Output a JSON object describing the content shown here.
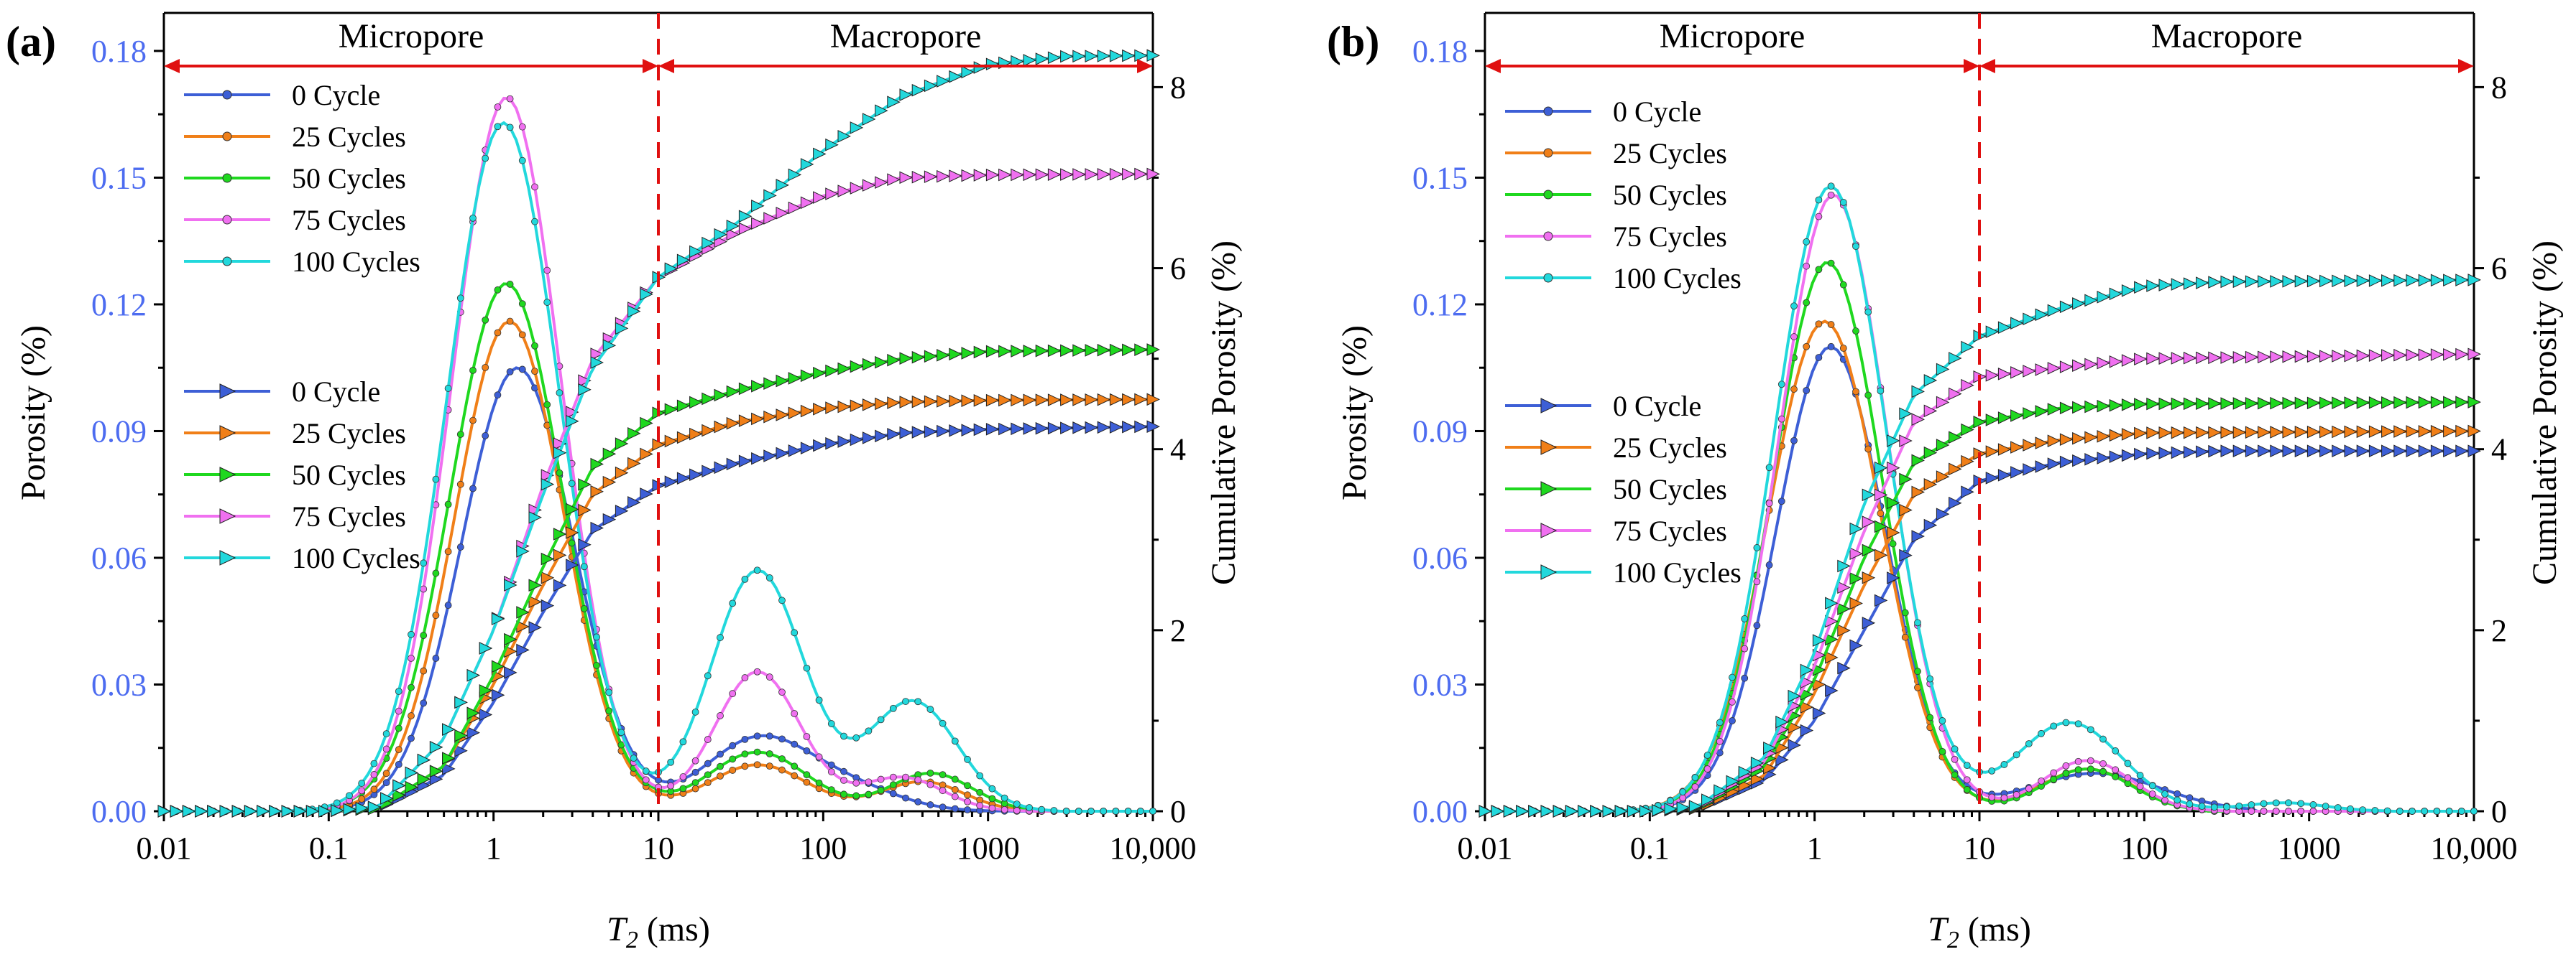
{
  "figure": {
    "panels": [
      {
        "id": "a",
        "label": "(a)",
        "region_left": "Micropore",
        "region_right": "Macropore",
        "divider_t2": 10,
        "xlabel_main": "T",
        "xlabel_sub": "2",
        "xlabel_unit": " (ms)",
        "ylabel_left": "Porosity (%)",
        "ylabel_right": "Cumulative Porosity (%)",
        "x_ticks": [
          "0.01",
          "0.1",
          "1",
          "10",
          "100",
          "1000",
          "10,000"
        ],
        "y_left_ticks": [
          "0.00",
          "0.03",
          "0.06",
          "0.09",
          "0.12",
          "0.15",
          "0.18"
        ],
        "y_right_ticks": [
          "0",
          "2",
          "4",
          "6",
          "8"
        ],
        "legend_porosity": [
          "0 Cycle",
          "25 Cycles",
          "50 Cycles",
          "75 Cycles",
          "100 Cycles"
        ],
        "legend_cumulative": [
          "0 Cycle",
          "25 Cycles",
          "50 Cycles",
          "75 Cycles",
          "100 Cycles"
        ]
      },
      {
        "id": "b",
        "label": "(b)",
        "region_left": "Micropore",
        "region_right": "Macropore",
        "divider_t2": 10,
        "xlabel_main": "T",
        "xlabel_sub": "2",
        "xlabel_unit": " (ms)",
        "ylabel_left": "Porosity (%)",
        "ylabel_right": "Cumulative Porosity (%)",
        "x_ticks": [
          "0.01",
          "0.1",
          "1",
          "10",
          "100",
          "1000",
          "10,000"
        ],
        "y_left_ticks": [
          "0.00",
          "0.03",
          "0.06",
          "0.09",
          "0.12",
          "0.15",
          "0.18"
        ],
        "y_right_ticks": [
          "0",
          "2",
          "4",
          "6",
          "8"
        ],
        "legend_porosity": [
          "0 Cycle",
          "25 Cycles",
          "50 Cycles",
          "75 Cycles",
          "100 Cycles"
        ],
        "legend_cumulative": [
          "0 Cycle",
          "25 Cycles",
          "50 Cycles",
          "75 Cycles",
          "100 Cycles"
        ]
      }
    ],
    "colors": {
      "0 Cycle": "#3d5fd6",
      "25 Cycles": "#f07f18",
      "50 Cycles": "#1fd81f",
      "75 Cycles": "#f070f0",
      "100 Cycles": "#22d8dc",
      "divider": "#e01010",
      "left_axis_text": "#4d6cf0"
    }
  },
  "chart_data": [
    {
      "type": "line",
      "panel": "a",
      "title": "",
      "xlabel": "T2 (ms)",
      "ylabel": "Porosity (%)",
      "y2label": "Cumulative Porosity (%)",
      "xscale": "log",
      "xlim": [
        0.01,
        10000
      ],
      "ylim": [
        0,
        0.189
      ],
      "y2lim": [
        0,
        8.82
      ],
      "legend_position": "left",
      "series": [
        {
          "name": "0 Cycle",
          "axis": "left",
          "marker": "circle",
          "peaks": [
            [
              1.4,
              0.105,
              0.34
            ],
            [
              40,
              0.017,
              0.32
            ],
            [
              150,
              0.005,
              0.3
            ]
          ],
          "baseline_min_t2": 0.12,
          "baseline_max_t2": 1100
        },
        {
          "name": "25 Cycles",
          "axis": "left",
          "marker": "circle",
          "peaks": [
            [
              1.25,
              0.116,
              0.33
            ],
            [
              40,
              0.011,
              0.3
            ],
            [
              400,
              0.007,
              0.25
            ]
          ],
          "baseline_min_t2": 0.1,
          "baseline_max_t2": 1200
        },
        {
          "name": "50 Cycles",
          "axis": "left",
          "marker": "circle",
          "peaks": [
            [
              1.2,
              0.125,
              0.34
            ],
            [
              40,
              0.014,
              0.3
            ],
            [
              450,
              0.009,
              0.25
            ]
          ],
          "baseline_min_t2": 0.1,
          "baseline_max_t2": 1500
        },
        {
          "name": "75 Cycles",
          "axis": "left",
          "marker": "circle",
          "peaks": [
            [
              1.2,
              0.169,
              0.33
            ],
            [
              40,
              0.033,
              0.26
            ],
            [
              300,
              0.008,
              0.25
            ]
          ],
          "baseline_min_t2": 0.09,
          "baseline_max_t2": 1500
        },
        {
          "name": "100 Cycles",
          "axis": "left",
          "marker": "circle",
          "peaks": [
            [
              1.15,
              0.163,
              0.34
            ],
            [
              40,
              0.057,
              0.28
            ],
            [
              350,
              0.026,
              0.27
            ]
          ],
          "baseline_min_t2": 0.09,
          "baseline_max_t2": 1700
        },
        {
          "name": "0 Cycle",
          "axis": "right",
          "marker": "triangle",
          "points": [
            [
              0.1,
              0
            ],
            [
              0.2,
              0.03
            ],
            [
              0.5,
              0.4
            ],
            [
              1,
              1.2
            ],
            [
              2,
              2.2
            ],
            [
              4,
              3.1
            ],
            [
              10,
              3.6
            ],
            [
              30,
              3.85
            ],
            [
              100,
              4.05
            ],
            [
              300,
              4.18
            ],
            [
              1000,
              4.22
            ],
            [
              10000,
              4.25
            ]
          ]
        },
        {
          "name": "25 Cycles",
          "axis": "right",
          "marker": "triangle",
          "points": [
            [
              0.1,
              0
            ],
            [
              0.2,
              0.03
            ],
            [
              0.5,
              0.5
            ],
            [
              1,
              1.4
            ],
            [
              2,
              2.5
            ],
            [
              4,
              3.5
            ],
            [
              10,
              4.05
            ],
            [
              30,
              4.3
            ],
            [
              100,
              4.45
            ],
            [
              300,
              4.52
            ],
            [
              1000,
              4.54
            ],
            [
              10000,
              4.55
            ]
          ]
        },
        {
          "name": "50 Cycles",
          "axis": "right",
          "marker": "triangle",
          "points": [
            [
              0.1,
              0
            ],
            [
              0.2,
              0.03
            ],
            [
              0.5,
              0.5
            ],
            [
              1,
              1.5
            ],
            [
              2,
              2.7
            ],
            [
              4,
              3.8
            ],
            [
              10,
              4.4
            ],
            [
              30,
              4.65
            ],
            [
              100,
              4.85
            ],
            [
              300,
              5.0
            ],
            [
              1000,
              5.08
            ],
            [
              10000,
              5.1
            ]
          ]
        },
        {
          "name": "75 Cycles",
          "axis": "right",
          "marker": "triangle",
          "points": [
            [
              0.1,
              0
            ],
            [
              0.2,
              0.05
            ],
            [
              0.5,
              0.8
            ],
            [
              1,
              2.0
            ],
            [
              2,
              3.6
            ],
            [
              4,
              5.0
            ],
            [
              10,
              5.9
            ],
            [
              30,
              6.4
            ],
            [
              100,
              6.8
            ],
            [
              300,
              7.0
            ],
            [
              1000,
              7.03
            ],
            [
              10000,
              7.04
            ]
          ]
        },
        {
          "name": "100 Cycles",
          "axis": "right",
          "marker": "triangle",
          "points": [
            [
              0.1,
              0
            ],
            [
              0.2,
              0.05
            ],
            [
              0.5,
              0.8
            ],
            [
              1,
              2.0
            ],
            [
              2,
              3.5
            ],
            [
              4,
              4.9
            ],
            [
              10,
              5.9
            ],
            [
              30,
              6.5
            ],
            [
              100,
              7.3
            ],
            [
              300,
              7.9
            ],
            [
              1000,
              8.25
            ],
            [
              3000,
              8.34
            ],
            [
              10000,
              8.35
            ]
          ]
        }
      ]
    },
    {
      "type": "line",
      "panel": "b",
      "title": "",
      "xlabel": "T2 (ms)",
      "ylabel": "Porosity (%)",
      "y2label": "Cumulative Porosity (%)",
      "xscale": "log",
      "xlim": [
        0.01,
        10000
      ],
      "ylim": [
        0,
        0.189
      ],
      "y2lim": [
        0,
        8.82
      ],
      "legend_position": "left",
      "series": [
        {
          "name": "0 Cycle",
          "axis": "left",
          "marker": "circle",
          "peaks": [
            [
              1.25,
              0.11,
              0.33
            ],
            [
              50,
              0.009,
              0.4
            ]
          ],
          "baseline_min_t2": 0.15,
          "baseline_max_t2": 300
        },
        {
          "name": "25 Cycles",
          "axis": "left",
          "marker": "circle",
          "peaks": [
            [
              1.15,
              0.116,
              0.34
            ],
            [
              45,
              0.01,
              0.28
            ]
          ],
          "baseline_min_t2": 0.12,
          "baseline_max_t2": 150
        },
        {
          "name": "50 Cycles",
          "axis": "left",
          "marker": "circle",
          "peaks": [
            [
              1.2,
              0.13,
              0.33
            ],
            [
              45,
              0.01,
              0.27
            ]
          ],
          "baseline_min_t2": 0.12,
          "baseline_max_t2": 150
        },
        {
          "name": "75 Cycles",
          "axis": "left",
          "marker": "circle",
          "peaks": [
            [
              1.3,
              0.146,
              0.33
            ],
            [
              45,
              0.012,
              0.27
            ]
          ],
          "baseline_min_t2": 0.11,
          "baseline_max_t2": 200
        },
        {
          "name": "100 Cycles",
          "axis": "left",
          "marker": "circle",
          "peaks": [
            [
              1.25,
              0.148,
              0.34
            ],
            [
              35,
              0.021,
              0.32
            ],
            [
              700,
              0.002,
              0.25
            ]
          ],
          "baseline_min_t2": 0.1,
          "baseline_max_t2": 2000
        },
        {
          "name": "0 Cycle",
          "axis": "right",
          "marker": "triangle",
          "points": [
            [
              0.1,
              0
            ],
            [
              0.2,
              0.03
            ],
            [
              0.5,
              0.35
            ],
            [
              1,
              1.0
            ],
            [
              2,
              2.0
            ],
            [
              4,
              3.0
            ],
            [
              10,
              3.65
            ],
            [
              30,
              3.85
            ],
            [
              100,
              3.95
            ],
            [
              300,
              3.98
            ],
            [
              10000,
              3.98
            ]
          ]
        },
        {
          "name": "25 Cycles",
          "axis": "right",
          "marker": "triangle",
          "points": [
            [
              0.1,
              0
            ],
            [
              0.2,
              0.03
            ],
            [
              0.5,
              0.4
            ],
            [
              1,
              1.3
            ],
            [
              2,
              2.5
            ],
            [
              4,
              3.5
            ],
            [
              10,
              3.95
            ],
            [
              30,
              4.1
            ],
            [
              100,
              4.18
            ],
            [
              10000,
              4.2
            ]
          ]
        },
        {
          "name": "50 Cycles",
          "axis": "right",
          "marker": "triangle",
          "points": [
            [
              0.1,
              0
            ],
            [
              0.2,
              0.04
            ],
            [
              0.5,
              0.5
            ],
            [
              1,
              1.45
            ],
            [
              2,
              2.8
            ],
            [
              4,
              3.85
            ],
            [
              10,
              4.3
            ],
            [
              30,
              4.45
            ],
            [
              100,
              4.5
            ],
            [
              10000,
              4.52
            ]
          ]
        },
        {
          "name": "75 Cycles",
          "axis": "right",
          "marker": "triangle",
          "points": [
            [
              0.1,
              0
            ],
            [
              0.2,
              0.05
            ],
            [
              0.5,
              0.55
            ],
            [
              1,
              1.6
            ],
            [
              2,
              3.1
            ],
            [
              4,
              4.3
            ],
            [
              10,
              4.8
            ],
            [
              30,
              4.9
            ],
            [
              100,
              5.0
            ],
            [
              10000,
              5.05
            ]
          ]
        },
        {
          "name": "100 Cycles",
          "axis": "right",
          "marker": "triangle",
          "points": [
            [
              0.1,
              0
            ],
            [
              0.2,
              0.06
            ],
            [
              0.5,
              0.6
            ],
            [
              1,
              1.75
            ],
            [
              2,
              3.4
            ],
            [
              4,
              4.6
            ],
            [
              10,
              5.25
            ],
            [
              30,
              5.55
            ],
            [
              100,
              5.8
            ],
            [
              300,
              5.85
            ],
            [
              10000,
              5.87
            ]
          ]
        }
      ]
    }
  ]
}
